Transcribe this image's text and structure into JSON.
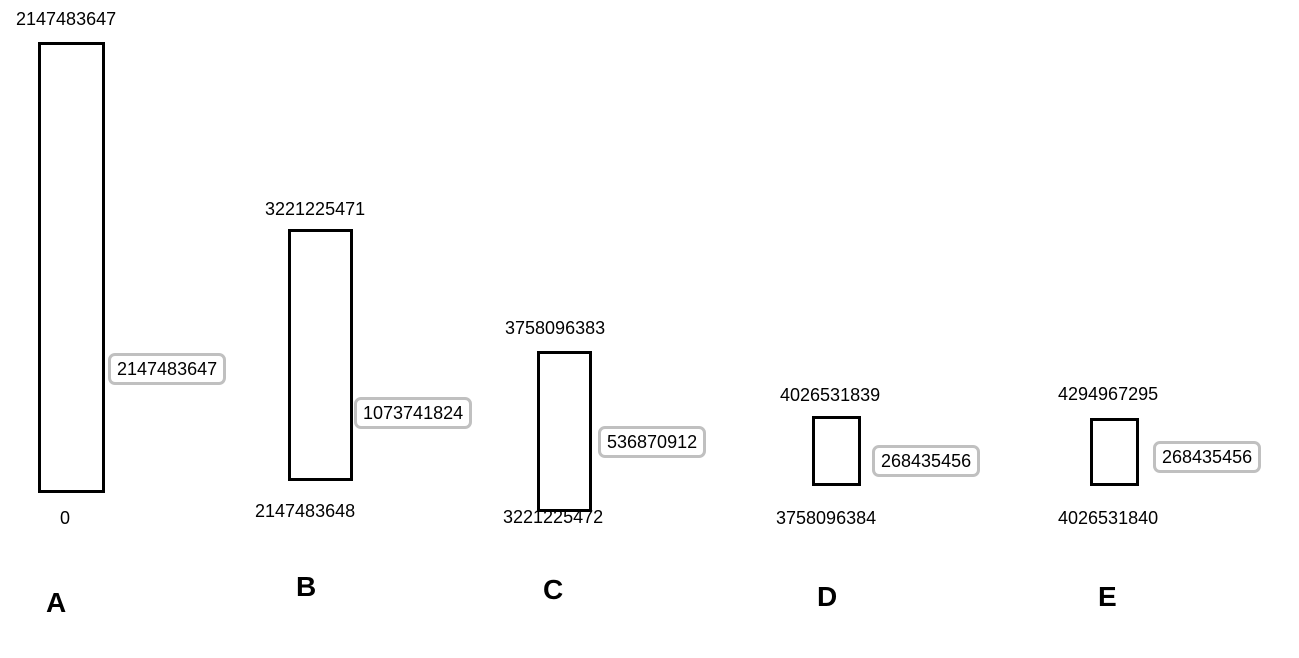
{
  "partitions": [
    {
      "label": "A",
      "top_value": "2147483647",
      "bottom_value": "0",
      "size": "2147483647"
    },
    {
      "label": "B",
      "top_value": "3221225471",
      "bottom_value": "2147483648",
      "size": "1073741824"
    },
    {
      "label": "C",
      "top_value": "3758096383",
      "bottom_value": "3221225472",
      "size": "536870912"
    },
    {
      "label": "D",
      "top_value": "4026531839",
      "bottom_value": "3758096384",
      "size": "268435456"
    },
    {
      "label": "E",
      "top_value": "4294967295",
      "bottom_value": "4026531840",
      "size": "268435456"
    }
  ]
}
